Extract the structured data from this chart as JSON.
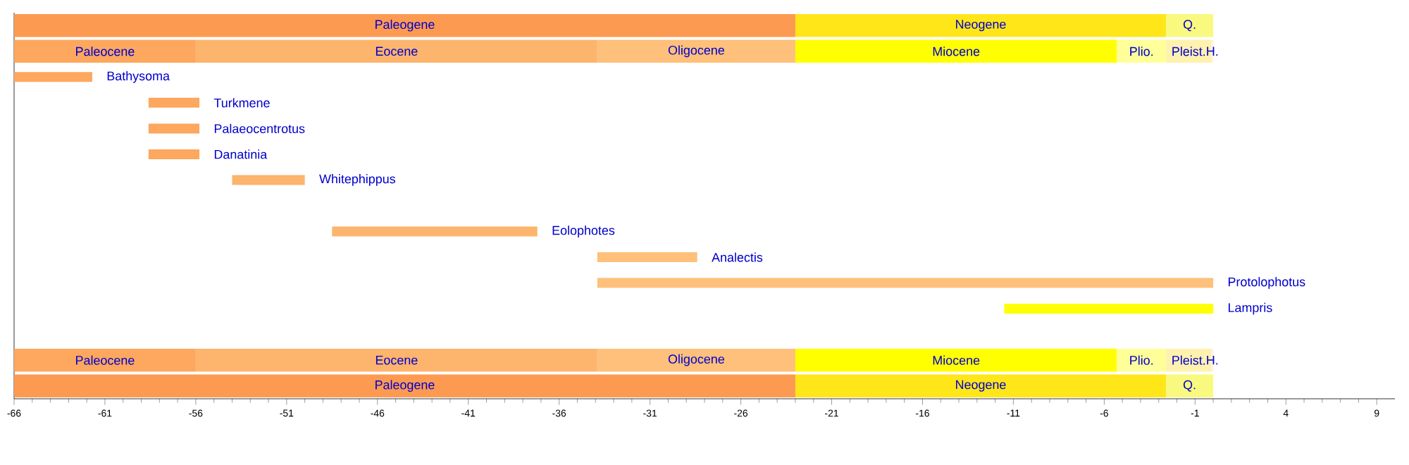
{
  "chart_data": {
    "type": "bar",
    "orientation": "horizontal",
    "grid": false,
    "categories": [
      null,
      null,
      "Bathysoma",
      "Turkmene",
      "Palaeocentrotus",
      "Danatinia",
      "Whitephippus",
      null,
      "Eolophotes",
      "Analectis",
      "Protolophotus",
      "Lampris",
      null,
      null,
      null
    ],
    "xlim": [
      -66,
      10
    ],
    "xticks": [
      -66,
      -61,
      -56,
      -51,
      -46,
      -41,
      -36,
      -31,
      -26,
      -21,
      -16,
      -11,
      -6,
      -1,
      4,
      9
    ],
    "series": [
      {
        "colors": [
          null,
          null,
          "#fda75f",
          "#fda75f",
          "#fda75f",
          "#fda75f",
          "#fdb46c",
          null,
          "#fdb46c",
          "#fec07a",
          "#fec07a",
          "#ffff00",
          null,
          null,
          null
        ],
        "base": [
          null,
          null,
          -66,
          -58.6,
          -58.6,
          -58.6,
          -54,
          null,
          -48.5,
          -33.9,
          -33.9,
          -11.5,
          null,
          null,
          null
        ],
        "values": [
          null,
          null,
          4.3,
          2.8,
          2.8,
          2.8,
          4,
          null,
          11.3,
          5.5,
          33.9,
          11.5,
          null,
          null,
          null
        ]
      },
      {
        "color": "#fd9a52",
        "base": [
          -66,
          null,
          null,
          null,
          null,
          null,
          null,
          null,
          null,
          null,
          null,
          null,
          null,
          null,
          -66
        ],
        "values": [
          43,
          null,
          null,
          null,
          null,
          null,
          null,
          null,
          null,
          null,
          null,
          null,
          null,
          null,
          43
        ],
        "value_labels": [
          "Paleogene",
          null,
          null,
          null,
          null,
          null,
          null,
          null,
          null,
          null,
          null,
          null,
          null,
          null,
          "Paleogene"
        ]
      },
      {
        "color": "#ffe619",
        "base": [
          -23,
          null,
          null,
          null,
          null,
          null,
          null,
          null,
          null,
          null,
          null,
          null,
          null,
          null,
          -23
        ],
        "values": [
          20.4,
          null,
          null,
          null,
          null,
          null,
          null,
          null,
          null,
          null,
          null,
          null,
          null,
          null,
          20.4
        ],
        "value_labels": [
          "Neogene",
          null,
          null,
          null,
          null,
          null,
          null,
          null,
          null,
          null,
          null,
          null,
          null,
          null,
          "Neogene"
        ]
      },
      {
        "color": "#f9f97f",
        "base": [
          -2.6,
          null,
          null,
          null,
          null,
          null,
          null,
          null,
          null,
          null,
          null,
          null,
          null,
          null,
          -2.6
        ],
        "values": [
          2.6,
          null,
          null,
          null,
          null,
          null,
          null,
          null,
          null,
          null,
          null,
          null,
          null,
          null,
          2.6
        ],
        "value_labels": [
          "Q.",
          null,
          null,
          null,
          null,
          null,
          null,
          null,
          null,
          null,
          null,
          null,
          null,
          null,
          "Q."
        ]
      },
      {
        "color": "#fda75f",
        "base": [
          null,
          -66,
          null,
          null,
          null,
          null,
          null,
          null,
          null,
          null,
          null,
          null,
          null,
          -66,
          null
        ],
        "values": [
          null,
          10,
          null,
          null,
          null,
          null,
          null,
          null,
          null,
          null,
          null,
          null,
          null,
          10,
          null
        ],
        "value_labels": [
          null,
          "Paleocene",
          null,
          null,
          null,
          null,
          null,
          null,
          null,
          null,
          null,
          null,
          null,
          "Paleocene",
          null
        ]
      },
      {
        "color": "#fdb46c",
        "base": [
          null,
          -56,
          null,
          null,
          null,
          null,
          null,
          null,
          null,
          null,
          null,
          null,
          null,
          -56,
          null
        ],
        "values": [
          null,
          22.1,
          null,
          null,
          null,
          null,
          null,
          null,
          null,
          null,
          null,
          null,
          null,
          22.1,
          null
        ],
        "value_labels": [
          null,
          "Eocene",
          null,
          null,
          null,
          null,
          null,
          null,
          null,
          null,
          null,
          null,
          null,
          "Eocene",
          null
        ]
      },
      {
        "color": "#fec07a",
        "base": [
          null,
          -33.9,
          null,
          null,
          null,
          null,
          null,
          null,
          null,
          null,
          null,
          null,
          null,
          -33.9,
          null
        ],
        "values": [
          null,
          10.9,
          null,
          null,
          null,
          null,
          null,
          null,
          null,
          null,
          null,
          null,
          null,
          10.9,
          null
        ],
        "value_labels": [
          null,
          "Oligocene",
          null,
          null,
          null,
          null,
          null,
          null,
          null,
          null,
          null,
          null,
          null,
          "Oligocene",
          null
        ]
      },
      {
        "color": "#ffff00",
        "base": [
          null,
          -23,
          null,
          null,
          null,
          null,
          null,
          null,
          null,
          null,
          null,
          null,
          null,
          -23,
          null
        ],
        "values": [
          null,
          17.7,
          null,
          null,
          null,
          null,
          null,
          null,
          null,
          null,
          null,
          null,
          null,
          17.7,
          null
        ],
        "value_labels": [
          null,
          "Miocene",
          null,
          null,
          null,
          null,
          null,
          null,
          null,
          null,
          null,
          null,
          null,
          "Miocene",
          null
        ]
      },
      {
        "color": "#ffff99",
        "base": [
          null,
          -5.3,
          null,
          null,
          null,
          null,
          null,
          null,
          null,
          null,
          null,
          null,
          null,
          -5.3,
          null
        ],
        "values": [
          null,
          2.7,
          null,
          null,
          null,
          null,
          null,
          null,
          null,
          null,
          null,
          null,
          null,
          2.7,
          null
        ],
        "value_labels": [
          null,
          "Plio.",
          null,
          null,
          null,
          null,
          null,
          null,
          null,
          null,
          null,
          null,
          null,
          "Plio.",
          null
        ]
      },
      {
        "color": "#fff2ae",
        "base": [
          null,
          -2.6,
          null,
          null,
          null,
          null,
          null,
          null,
          null,
          null,
          null,
          null,
          null,
          -2.6,
          null
        ],
        "values": [
          null,
          2.5,
          null,
          null,
          null,
          null,
          null,
          null,
          null,
          null,
          null,
          null,
          null,
          2.5,
          null
        ],
        "value_labels": [
          null,
          "Pleist.",
          null,
          null,
          null,
          null,
          null,
          null,
          null,
          null,
          null,
          null,
          null,
          "Pleist.",
          null
        ]
      },
      {
        "color": "#fef2e0",
        "base": [
          null,
          -0.1,
          null,
          null,
          null,
          null,
          null,
          null,
          null,
          null,
          null,
          null,
          null,
          -0.1,
          null
        ],
        "values": [
          null,
          0.1,
          null,
          null,
          null,
          null,
          null,
          null,
          null,
          null,
          null,
          null,
          null,
          0.1,
          null
        ],
        "value_labels": [
          null,
          "H.",
          null,
          null,
          null,
          null,
          null,
          null,
          null,
          null,
          null,
          null,
          null,
          "H.",
          null
        ]
      }
    ]
  }
}
